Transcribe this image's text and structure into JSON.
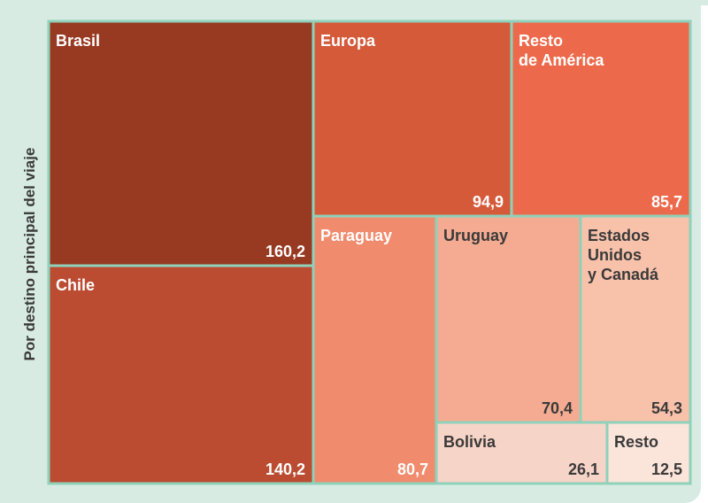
{
  "chart_data": {
    "type": "treemap",
    "ylabel": "Por destino principal del viaje",
    "items": [
      {
        "name": "Brasil",
        "lines": [
          "Brasil"
        ],
        "value": "160,2",
        "color": "#983a22",
        "text_color": "#ffffff"
      },
      {
        "name": "Chile",
        "lines": [
          "Chile"
        ],
        "value": "140,2",
        "color": "#bb4c32",
        "text_color": "#ffffff"
      },
      {
        "name": "Europa",
        "lines": [
          "Europa"
        ],
        "value": "94,9",
        "color": "#d45a3a",
        "text_color": "#ffffff"
      },
      {
        "name": "Resto de América",
        "lines": [
          "Resto",
          "de América"
        ],
        "value": "85,7",
        "color": "#ec6a4b",
        "text_color": "#ffffff"
      },
      {
        "name": "Paraguay",
        "lines": [
          "Paraguay"
        ],
        "value": "80,7",
        "color": "#f08b6d",
        "text_color": "#ffffff"
      },
      {
        "name": "Uruguay",
        "lines": [
          "Uruguay"
        ],
        "value": "70,4",
        "color": "#f5ab91",
        "text_color": "#3a3a3a"
      },
      {
        "name": "Estados Unidos y Canadá",
        "lines": [
          "Estados",
          "Unidos",
          "y Canadá"
        ],
        "value": "54,3",
        "color": "#f8c1aa",
        "text_color": "#3a3a3a"
      },
      {
        "name": "Bolivia",
        "lines": [
          "Bolivia"
        ],
        "value": "26,1",
        "color": "#f7d4c8",
        "text_color": "#3a3a3a"
      },
      {
        "name": "Resto",
        "lines": [
          "Resto"
        ],
        "value": "12,5",
        "color": "#fbe4da",
        "text_color": "#3a3a3a"
      }
    ]
  }
}
